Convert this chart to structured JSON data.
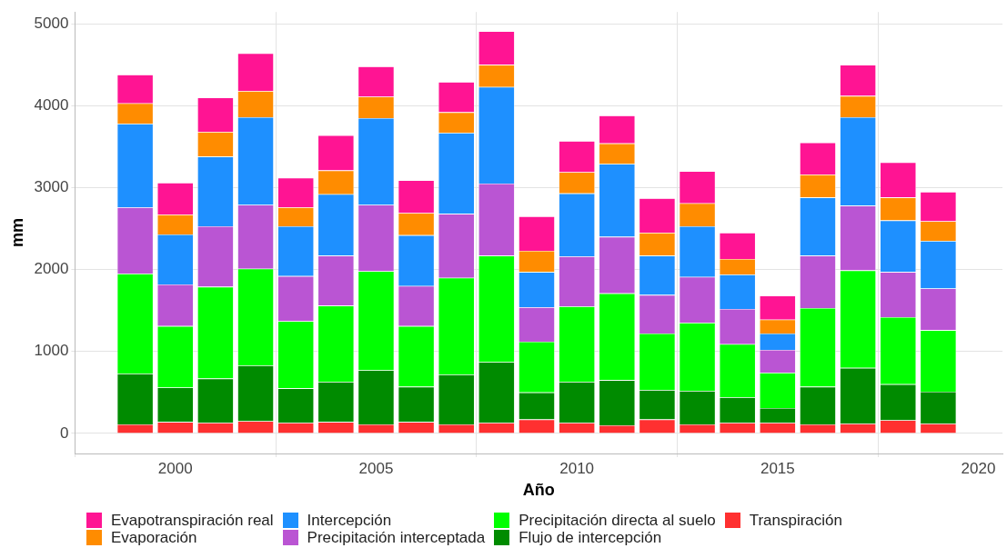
{
  "chart_data": {
    "type": "bar",
    "stacked": true,
    "xlabel": "Año",
    "ylabel": "mm",
    "x": [
      1999,
      2000,
      2001,
      2002,
      2003,
      2004,
      2005,
      2006,
      2007,
      2008,
      2009,
      2010,
      2011,
      2012,
      2013,
      2014,
      2015,
      2016,
      2017,
      2018,
      2019
    ],
    "xlim": [
      1997.5,
      2020.6
    ],
    "xticks": [
      2000,
      2005,
      2010,
      2015,
      2020
    ],
    "ylim": [
      -245,
      5145
    ],
    "yticks": [
      0,
      1000,
      2000,
      3000,
      4000,
      5000
    ],
    "grid": true,
    "legend": "bottom",
    "series": [
      {
        "name": "Transpiración",
        "color": "#ff3030",
        "values": [
          110,
          140,
          130,
          150,
          130,
          140,
          110,
          140,
          110,
          130,
          170,
          130,
          100,
          170,
          110,
          130,
          130,
          110,
          120,
          160,
          120
        ]
      },
      {
        "name": "Flujo de intercepción",
        "color": "#008b00",
        "values": [
          620,
          420,
          540,
          680,
          420,
          490,
          660,
          430,
          610,
          740,
          330,
          500,
          550,
          360,
          410,
          310,
          180,
          460,
          680,
          440,
          390
        ]
      },
      {
        "name": "Precipitación directa al suelo",
        "color": "#00ff00",
        "values": [
          1220,
          750,
          1120,
          1180,
          820,
          930,
          1210,
          740,
          1180,
          1300,
          620,
          920,
          1060,
          690,
          830,
          650,
          430,
          960,
          1190,
          820,
          750
        ]
      },
      {
        "name": "Precipitación interceptada",
        "color": "#ba55d3",
        "values": [
          810,
          510,
          740,
          780,
          550,
          610,
          810,
          490,
          780,
          880,
          420,
          610,
          690,
          470,
          560,
          430,
          280,
          640,
          790,
          550,
          510
        ]
      },
      {
        "name": "Intercepción",
        "color": "#1e90ff",
        "values": [
          1020,
          610,
          850,
          1070,
          610,
          750,
          1060,
          620,
          990,
          1180,
          430,
          770,
          890,
          480,
          620,
          420,
          200,
          710,
          1080,
          630,
          580
        ]
      },
      {
        "name": "Evaporación",
        "color": "#ff8c00",
        "values": [
          250,
          240,
          300,
          320,
          230,
          290,
          260,
          270,
          250,
          270,
          260,
          260,
          250,
          280,
          280,
          190,
          170,
          280,
          260,
          280,
          240
        ]
      },
      {
        "name": "Evapotranspiración real",
        "color": "#ff1493",
        "values": [
          350,
          390,
          420,
          460,
          360,
          430,
          370,
          400,
          370,
          410,
          420,
          380,
          340,
          420,
          390,
          320,
          290,
          390,
          380,
          430,
          360
        ]
      }
    ]
  }
}
